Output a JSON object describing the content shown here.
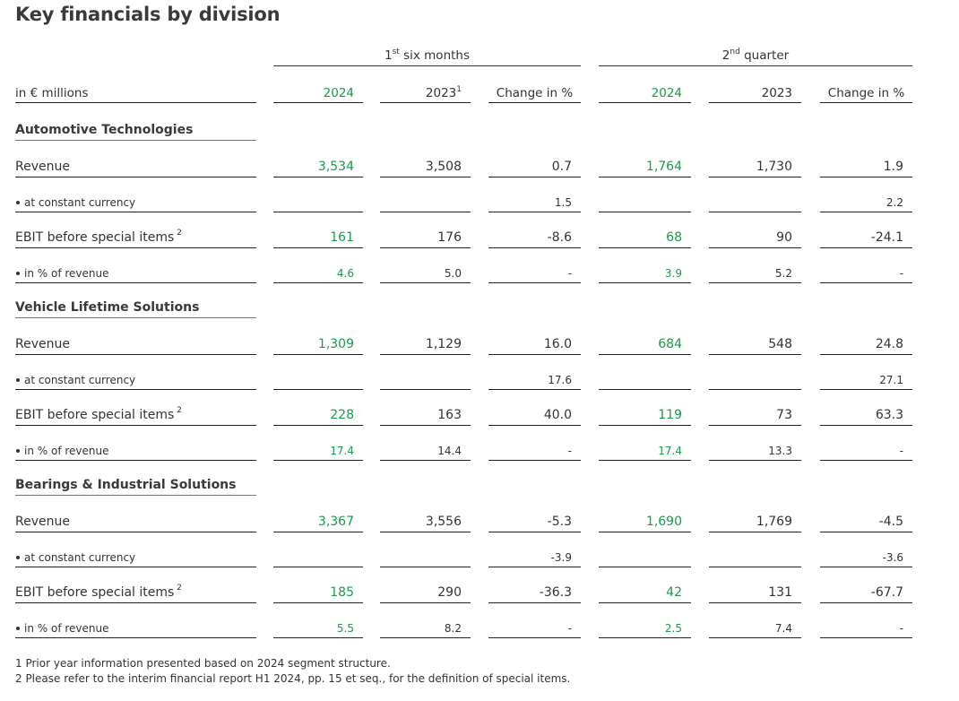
{
  "title": "Key financials by division",
  "groups": [
    {
      "base": "1",
      "sup": "st",
      "rest": " six months"
    },
    {
      "base": "2",
      "sup": "nd",
      "rest": " quarter"
    }
  ],
  "header": {
    "label": "in € millions",
    "columns": [
      {
        "text": "2024",
        "sup": ""
      },
      {
        "text": "2023",
        "sup": "1"
      },
      {
        "text": "Change in %",
        "sup": ""
      },
      {
        "text": "2024",
        "sup": ""
      },
      {
        "text": "2023",
        "sup": ""
      },
      {
        "text": "Change in %",
        "sup": ""
      }
    ]
  },
  "sections": [
    {
      "name": "Automotive Technologies",
      "rows": [
        {
          "label": "Revenue",
          "sup": "",
          "sub": false,
          "values": [
            "3,534",
            "3,508",
            "0.7",
            "1,764",
            "1,730",
            "1.9"
          ]
        },
        {
          "label": "at constant currency",
          "sup": "",
          "sub": true,
          "values": [
            "",
            "",
            "1.5",
            "",
            "",
            "2.2"
          ]
        },
        {
          "label": "EBIT before special items",
          "sup": "2",
          "sub": false,
          "values": [
            "161",
            "176",
            "-8.6",
            "68",
            "90",
            "-24.1"
          ]
        },
        {
          "label": "in % of revenue",
          "sup": "",
          "sub": true,
          "values": [
            "4.6",
            "5.0",
            "-",
            "3.9",
            "5.2",
            "-"
          ]
        }
      ]
    },
    {
      "name": "Vehicle Lifetime Solutions",
      "rows": [
        {
          "label": "Revenue",
          "sup": "",
          "sub": false,
          "values": [
            "1,309",
            "1,129",
            "16.0",
            "684",
            "548",
            "24.8"
          ]
        },
        {
          "label": "at constant currency",
          "sup": "",
          "sub": true,
          "values": [
            "",
            "",
            "17.6",
            "",
            "",
            "27.1"
          ]
        },
        {
          "label": "EBIT before special items",
          "sup": "2",
          "sub": false,
          "values": [
            "228",
            "163",
            "40.0",
            "119",
            "73",
            "63.3"
          ]
        },
        {
          "label": "in % of revenue",
          "sup": "",
          "sub": true,
          "values": [
            "17.4",
            "14.4",
            "-",
            "17.4",
            "13.3",
            "-"
          ]
        }
      ]
    },
    {
      "name": "Bearings & Industrial Solutions",
      "rows": [
        {
          "label": "Revenue",
          "sup": "",
          "sub": false,
          "values": [
            "3,367",
            "3,556",
            "-5.3",
            "1,690",
            "1,769",
            "-4.5"
          ]
        },
        {
          "label": "at constant currency",
          "sup": "",
          "sub": true,
          "values": [
            "",
            "",
            "-3.9",
            "",
            "",
            "-3.6"
          ]
        },
        {
          "label": "EBIT before special items",
          "sup": "2",
          "sub": false,
          "values": [
            "185",
            "290",
            "-36.3",
            "42",
            "131",
            "-67.7"
          ]
        },
        {
          "label": "in % of revenue",
          "sup": "",
          "sub": true,
          "values": [
            "5.5",
            "8.2",
            "-",
            "2.5",
            "7.4",
            "-"
          ]
        }
      ]
    }
  ],
  "footnotes": [
    "1 Prior year information presented based on 2024 segment structure.",
    "2 Please refer to the interim financial report H1 2024, pp. 15 et seq., for the definition of special items."
  ],
  "colors": {
    "highlight": "#1a9a4a",
    "text": "#333333"
  }
}
